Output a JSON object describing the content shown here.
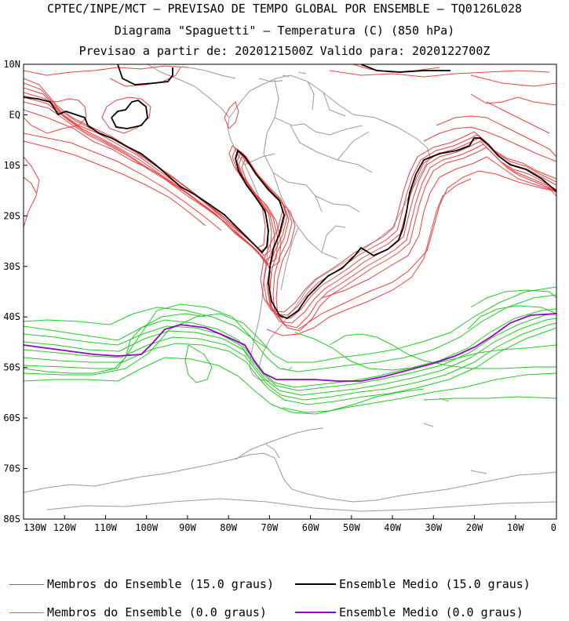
{
  "header": {
    "line1": "CPTEC/INPE/MCT – PREVISAO DE TEMPO GLOBAL POR ENSEMBLE – TQ0126L028",
    "line2": "Diagrama \"Spaguetti\" – Temperatura (C) (850 hPa)",
    "line3": "Previsao a partir de: 2020121500Z  Valido para: 2020122700Z"
  },
  "map": {
    "lat_labels": [
      "10N",
      "EQ",
      "10S",
      "20S",
      "30S",
      "40S",
      "50S",
      "60S",
      "70S",
      "80S"
    ],
    "lon_labels": [
      "130W",
      "120W",
      "110W",
      "100W",
      "90W",
      "80W",
      "70W",
      "60W",
      "50W",
      "40W",
      "30W",
      "20W",
      "10W",
      "0"
    ],
    "lat_values": [
      10,
      0,
      -10,
      -20,
      -30,
      -40,
      -50,
      -60,
      -70,
      -80
    ],
    "lon_values": [
      -130,
      -120,
      -110,
      -100,
      -90,
      -80,
      -70,
      -60,
      -50,
      -40,
      -30,
      -20,
      -10,
      0
    ]
  },
  "legend": {
    "red_members": "Membros do Ensemble (15.0 graus)",
    "black_mean": "Ensemble Medio (15.0 graus)",
    "green_members": "Membros do Ensemble (0.0 graus)",
    "purple_mean": "Ensemble Medio (0.0 graus)"
  },
  "colors": {
    "red": "#f04040",
    "black": "#000000",
    "green": "#22cc22",
    "purple": "#9900cc",
    "coast": "#9a9a9a"
  }
}
